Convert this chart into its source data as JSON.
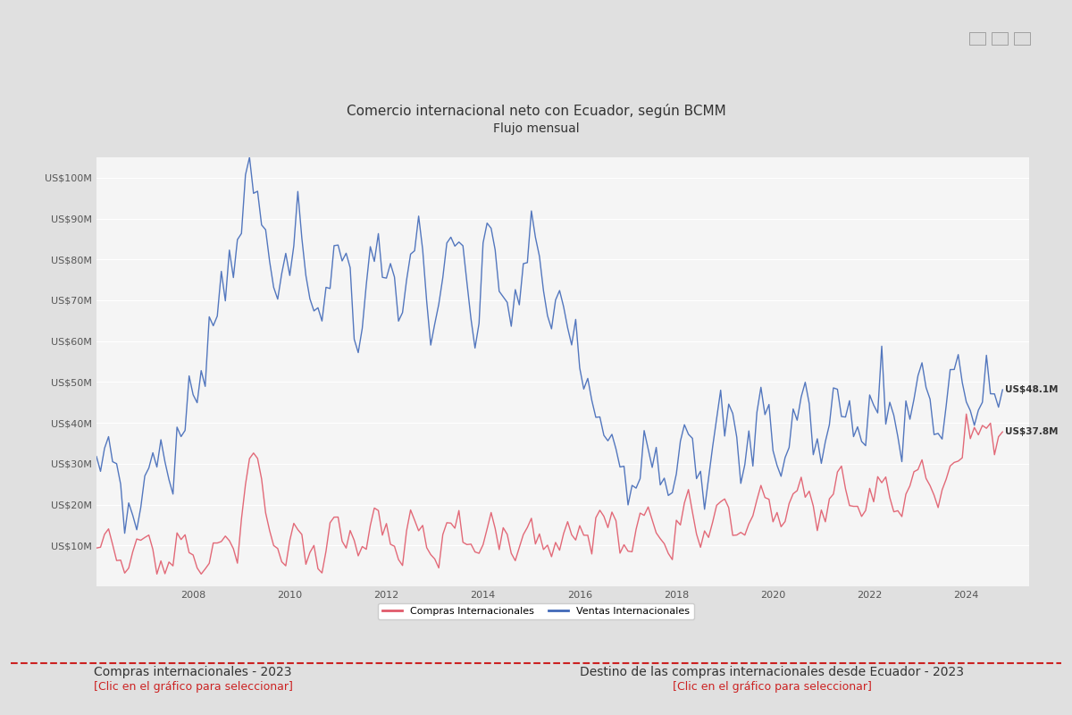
{
  "title_line1": "Comercio internacional neto con Ecuador, según BCMM",
  "title_line2": "Flujo mensual",
  "background_color": "#e8e8e8",
  "plot_bg_color": "#f0f0f0",
  "blue_color": "#4169b8",
  "red_color": "#e05a6a",
  "legend_red_label": "Compras Internacionales",
  "legend_blue_label": "Ventas Internacionales",
  "ytick_labels": [
    "US$10M",
    "US$20M",
    "US$30M",
    "US$40M",
    "US$50M",
    "US$60M",
    "US$70M",
    "US$80M",
    "US$90M",
    "US$100M"
  ],
  "ytick_values": [
    10,
    20,
    30,
    40,
    50,
    60,
    70,
    80,
    90,
    100
  ],
  "year_start": 2006,
  "year_end": 2025,
  "label_blue_end": "US$48.1M",
  "label_red_end": "US$37.8M",
  "annotation_fontsize": 7.5,
  "title_fontsize": 11,
  "subtitle_fontsize": 10,
  "axis_label_fontsize": 8
}
